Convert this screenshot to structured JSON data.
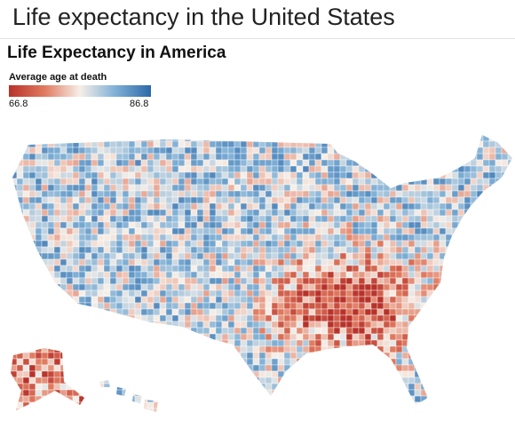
{
  "header": {
    "title": "Life expectancy in the United States"
  },
  "map": {
    "title": "Life Expectancy in America",
    "legend": {
      "title": "Average age at death",
      "min": 66.8,
      "max": 86.8
    }
  }
}
